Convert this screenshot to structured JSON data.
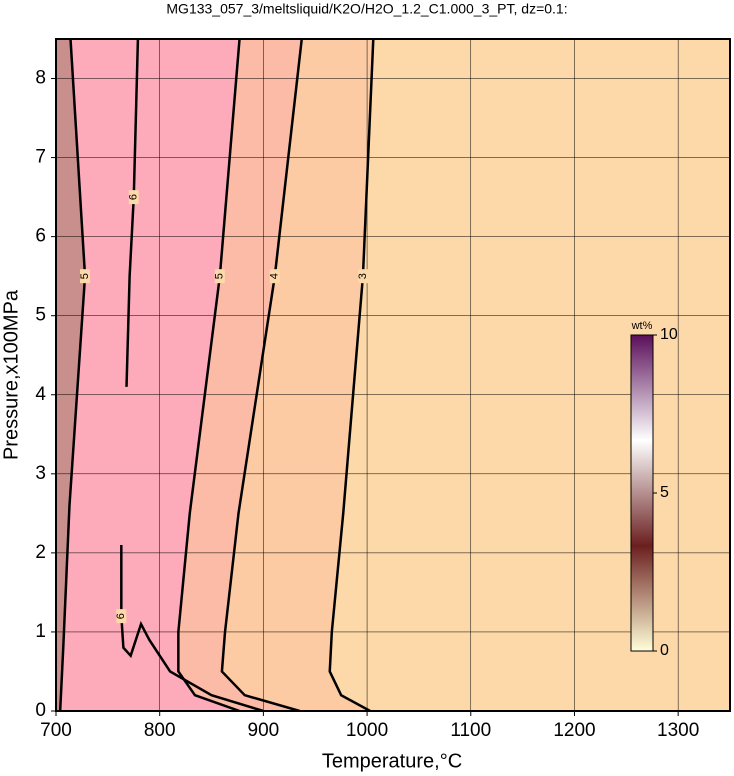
{
  "chart_data": {
    "type": "contour",
    "title": "MG133_057_3/meltsliquid/K2O/H2O_1.2_C1.000_3_PT, dz=0.1:",
    "x_label": "Temperature,°C",
    "y_label": "Pressure,x100MPa",
    "xlim": [
      700,
      1350
    ],
    "ylim": [
      0,
      8.5
    ],
    "xticks": [
      700,
      800,
      900,
      1000,
      1100,
      1200,
      1300
    ],
    "yticks": [
      0,
      1,
      2,
      3,
      4,
      5,
      6,
      7,
      8
    ],
    "grid": true,
    "background": "#fdd9a9",
    "contours": [
      {
        "level": 3,
        "fill": "#fccaa3",
        "x": [
          1006,
          996,
          977,
          966,
          964,
          975,
          1003
        ],
        "y": [
          8.5,
          5.5,
          2.5,
          1,
          0.5,
          0.2,
          0
        ]
      },
      {
        "level": 4,
        "fill": "#fbbba6",
        "x": [
          937,
          911,
          876,
          863,
          860,
          882,
          935
        ],
        "y": [
          8.5,
          5.5,
          2.5,
          1,
          0.5,
          0.2,
          0
        ]
      },
      {
        "level": 5,
        "fill": "#fdaabb",
        "x": [
          877,
          858,
          829,
          818,
          818,
          834,
          877
        ],
        "y": [
          8.5,
          5.5,
          2.5,
          1,
          0.5,
          0.2,
          0
        ]
      },
      {
        "level": 6,
        "x": [
          779,
          775,
          771,
          768
        ],
        "y": [
          8.5,
          6.5,
          5.5,
          4.1
        ]
      },
      {
        "level": 6,
        "x": [
          763,
          763,
          765,
          772,
          782,
          790,
          810,
          850,
          900
        ],
        "y": [
          2.1,
          1.2,
          0.8,
          0.7,
          1.1,
          0.9,
          0.5,
          0.2,
          0
        ]
      },
      {
        "level": 5,
        "fill": "#c98f8c",
        "x": [
          714,
          728,
          713,
          707,
          704
        ],
        "y": [
          8.5,
          5.5,
          2.6,
          0.8,
          0
        ]
      }
    ],
    "colorbar": {
      "label": "wt%",
      "lim": [
        0,
        10
      ],
      "ticks": [
        0,
        5,
        10
      ],
      "colors": [
        "#ffffd8",
        "#6b1f1f",
        "#ffffff",
        "#5a0f5a"
      ]
    }
  }
}
